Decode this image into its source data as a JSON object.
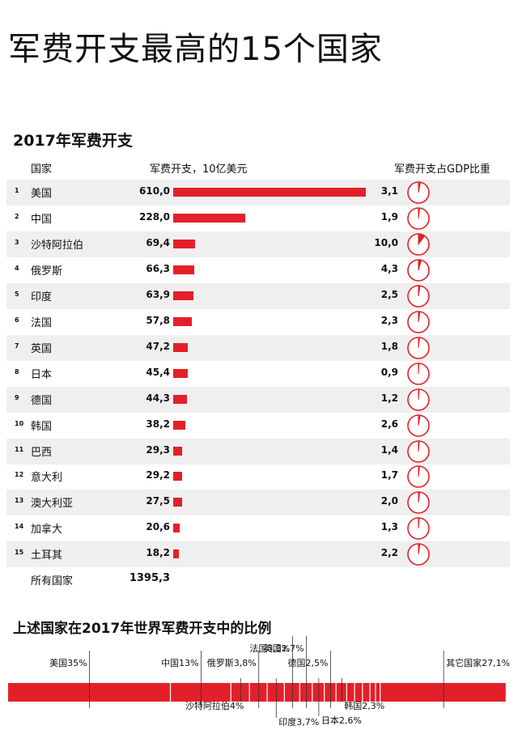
{
  "title": "军费开支最高的15个国家",
  "section1_title": "2017年军费开支",
  "headers": {
    "country": "国家",
    "spending": "军费开支，10亿美元",
    "gdp": "军费开支占GDP比重"
  },
  "total": {
    "label": "所有国家",
    "value": "1395,3"
  },
  "section2_title": "上述国家在2017年世界军费开支中的比例",
  "colors": {
    "accent": "#e3202a",
    "row_shade": "#efefef"
  },
  "chart_data": [
    {
      "type": "bar",
      "title": "2017年军费开支",
      "ylabel": "军费开支，10亿美元",
      "categories": [
        "美国",
        "中国",
        "沙特阿拉伯",
        "俄罗斯",
        "印度",
        "法国",
        "英国",
        "日本",
        "德国",
        "韩国",
        "巴西",
        "意大利",
        "澳大利亚",
        "加拿大",
        "土耳其"
      ],
      "ranks": [
        "1",
        "2",
        "3",
        "4",
        "5",
        "6",
        "7",
        "8",
        "9",
        "10",
        "11",
        "12",
        "13",
        "14",
        "15"
      ],
      "values": [
        610.0,
        228.0,
        69.4,
        66.3,
        63.9,
        57.8,
        47.2,
        45.4,
        44.3,
        38.2,
        29.3,
        29.2,
        27.5,
        20.6,
        18.2
      ],
      "value_labels": [
        "610,0",
        "228,0",
        "69,4",
        "66,3",
        "63,9",
        "57,8",
        "47,2",
        "45,4",
        "44,3",
        "38,2",
        "29,3",
        "29,2",
        "27,5",
        "20,6",
        "18,2"
      ],
      "gdp_share": [
        3.1,
        1.9,
        10.0,
        4.3,
        2.5,
        2.3,
        1.8,
        0.9,
        1.2,
        2.6,
        1.4,
        1.7,
        2.0,
        1.3,
        2.2
      ],
      "gdp_labels": [
        "3,1",
        "1,9",
        "10,0",
        "4,3",
        "2,5",
        "2,3",
        "1,8",
        "0,9",
        "1,2",
        "2,6",
        "1,4",
        "1,7",
        "2,0",
        "1,3",
        "2,2"
      ],
      "xlim": [
        0,
        610
      ]
    },
    {
      "type": "bar",
      "title": "上述国家在2017年世界军费开支中的比例",
      "segments": [
        {
          "label": "美国35%",
          "value": 35
        },
        {
          "label": "中国13%",
          "value": 13
        },
        {
          "label": "沙特阿拉伯4%",
          "value": 4
        },
        {
          "label": "俄罗斯3,8%",
          "value": 3.8
        },
        {
          "label": "印度3,7%",
          "value": 3.7
        },
        {
          "label": "法国3,3%",
          "value": 3.3
        },
        {
          "label": "英国2,7%",
          "value": 2.7
        },
        {
          "label": "日本2,6%",
          "value": 2.6
        },
        {
          "label": "德国2,5%",
          "value": 2.5
        },
        {
          "label": "韩国2,3%",
          "value": 2.3
        },
        {
          "label": "",
          "value": 1.7
        },
        {
          "label": "",
          "value": 1.7
        },
        {
          "label": "",
          "value": 1.6
        },
        {
          "label": "",
          "value": 1.2
        },
        {
          "label": "",
          "value": 1.0
        },
        {
          "label": "其它国家27,1%",
          "value": 27.1
        }
      ]
    }
  ]
}
